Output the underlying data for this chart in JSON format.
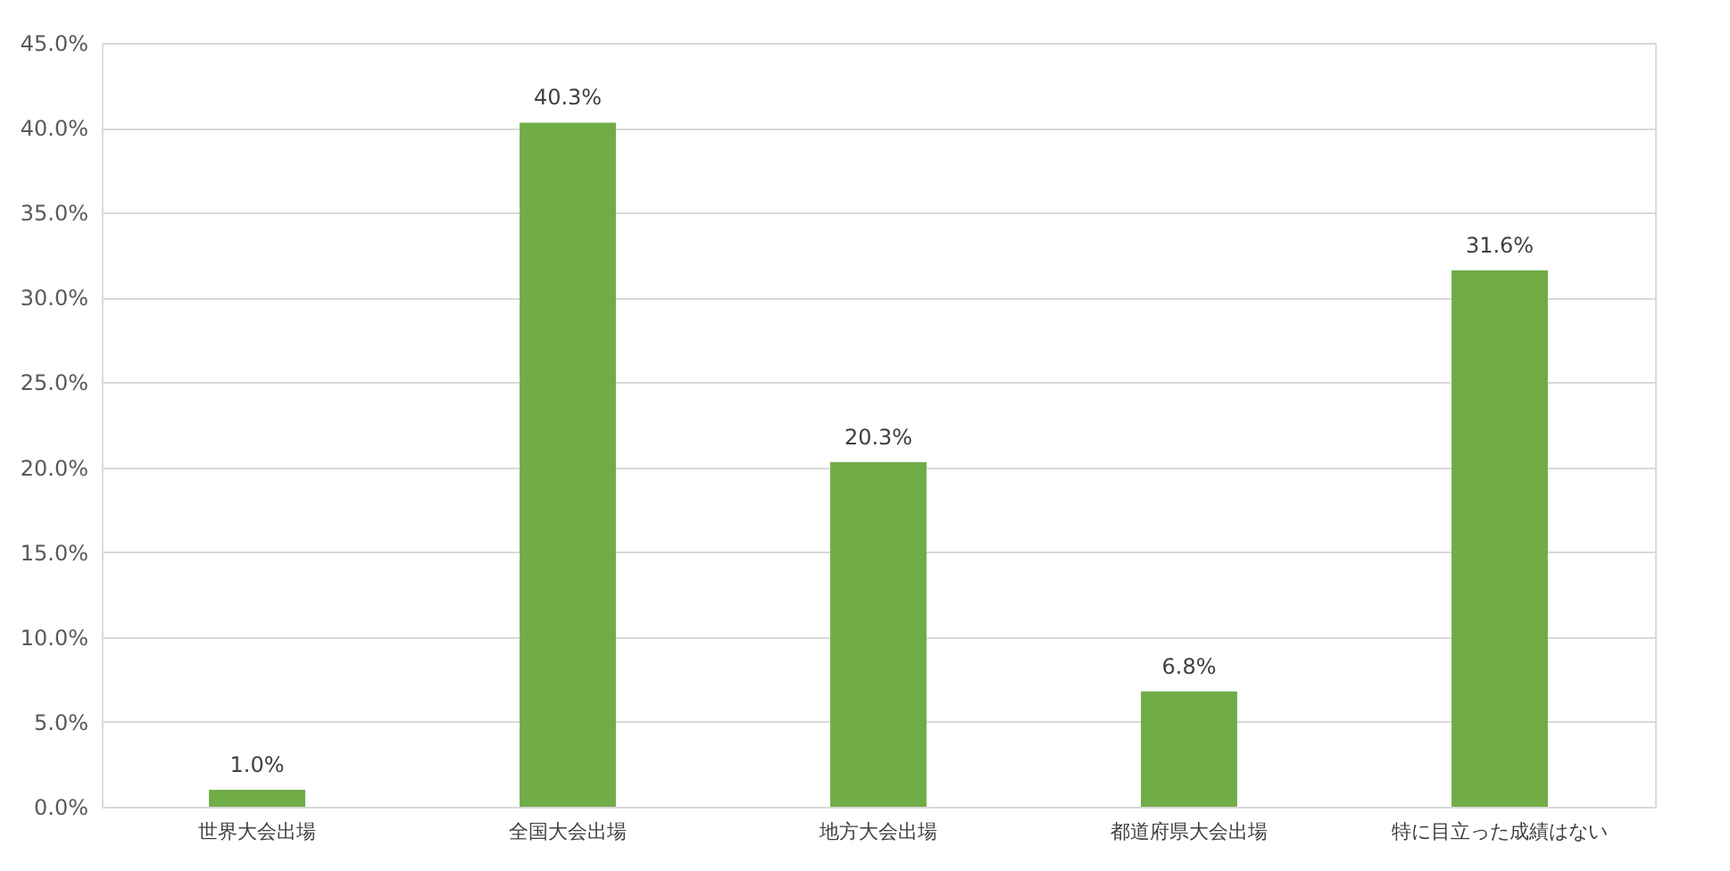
{
  "chart_data": {
    "type": "bar",
    "categories": [
      "世界大会出場",
      "全国大会出場",
      "地方大会出場",
      "都道府県大会出場",
      "特に目立った成績はない"
    ],
    "values": [
      1.0,
      40.3,
      20.3,
      6.8,
      31.6
    ],
    "value_labels": [
      "1.0%",
      "40.3%",
      "20.3%",
      "6.8%",
      "31.6%"
    ],
    "color": "#70ad47",
    "ylim": [
      0,
      45
    ],
    "yticks": [
      {
        "value": 0,
        "label": "0.0%"
      },
      {
        "value": 5,
        "label": "5.0%"
      },
      {
        "value": 10,
        "label": "10.0%"
      },
      {
        "value": 15,
        "label": "15.0%"
      },
      {
        "value": 20,
        "label": "20.0%"
      },
      {
        "value": 25,
        "label": "25.0%"
      },
      {
        "value": 30,
        "label": "30.0%"
      },
      {
        "value": 35,
        "label": "35.0%"
      },
      {
        "value": 40,
        "label": "40.0%"
      },
      {
        "value": 45,
        "label": "45.0%"
      }
    ],
    "grid": "y"
  }
}
